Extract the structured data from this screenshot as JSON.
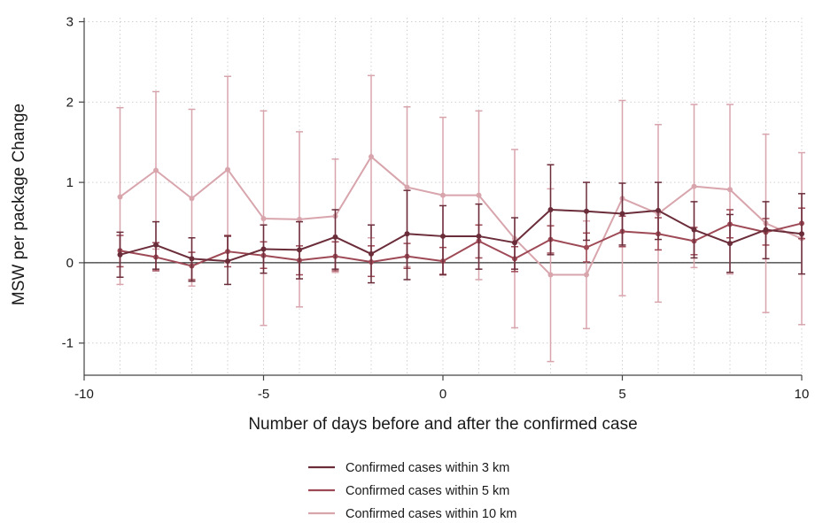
{
  "chart_data": {
    "type": "line",
    "xlabel": "Number of days before and after the confirmed case",
    "ylabel": "MSW per package Change",
    "xlim": [
      -10,
      10
    ],
    "ylim": [
      -1.4,
      3.05
    ],
    "xticks": [
      "-10",
      "-5",
      "0",
      "5",
      "10"
    ],
    "yticks": [
      "-1",
      "0",
      "1",
      "2",
      "3"
    ],
    "grid": true,
    "reference_line_y": 0,
    "legend_position": "bottom",
    "x": [
      -9,
      -8,
      -7,
      -6,
      -5,
      -4,
      -3,
      -2,
      -1,
      0,
      1,
      2,
      3,
      4,
      5,
      6,
      7,
      8,
      9,
      10
    ],
    "series": [
      {
        "name": "Confirmed cases within 3 km",
        "color": "#6b2d3a",
        "values": [
          0.1,
          0.22,
          0.05,
          0.02,
          0.17,
          0.16,
          0.32,
          0.11,
          0.36,
          0.33,
          0.33,
          0.25,
          0.66,
          0.64,
          0.61,
          0.65,
          0.41,
          0.24,
          0.41,
          0.36
        ],
        "lower": [
          -0.18,
          -0.08,
          -0.23,
          -0.27,
          -0.13,
          -0.2,
          -0.08,
          -0.25,
          -0.21,
          -0.15,
          -0.08,
          -0.08,
          0.1,
          0.28,
          0.22,
          0.29,
          0.06,
          -0.12,
          0.05,
          -0.14
        ],
        "upper": [
          0.38,
          0.51,
          0.31,
          0.33,
          0.47,
          0.51,
          0.66,
          0.47,
          0.9,
          0.71,
          0.73,
          0.56,
          1.22,
          1.0,
          0.99,
          1.0,
          0.76,
          0.6,
          0.76,
          0.86
        ]
      },
      {
        "name": "Confirmed cases within 5 km",
        "color": "#9e4a56",
        "values": [
          0.15,
          0.07,
          -0.04,
          0.14,
          0.09,
          0.03,
          0.08,
          0.01,
          0.08,
          0.02,
          0.27,
          0.05,
          0.29,
          0.19,
          0.39,
          0.36,
          0.27,
          0.48,
          0.38,
          0.49
        ],
        "lower": [
          -0.05,
          -0.1,
          -0.21,
          -0.05,
          -0.07,
          -0.15,
          -0.1,
          -0.17,
          -0.07,
          -0.15,
          0.06,
          -0.11,
          0.12,
          0.01,
          0.2,
          0.16,
          0.1,
          0.31,
          0.22,
          0.3
        ],
        "upper": [
          0.34,
          0.25,
          0.13,
          0.34,
          0.26,
          0.21,
          0.26,
          0.21,
          0.24,
          0.19,
          0.47,
          0.2,
          0.46,
          0.37,
          0.58,
          0.56,
          0.44,
          0.66,
          0.55,
          0.68
        ]
      },
      {
        "name": "Confirmed cases within 10 km",
        "color": "#d8a5ad",
        "values": [
          0.82,
          1.15,
          0.8,
          1.16,
          0.55,
          0.54,
          0.58,
          1.32,
          0.94,
          0.84,
          0.84,
          0.3,
          -0.15,
          -0.15,
          0.8,
          0.61,
          0.95,
          0.91,
          0.49,
          0.3
        ],
        "lower": [
          -0.27,
          0.17,
          -0.29,
          0.0,
          -0.78,
          -0.55,
          -0.12,
          0.31,
          -0.05,
          -0.14,
          -0.21,
          -0.81,
          -1.23,
          -0.82,
          -0.41,
          -0.49,
          -0.06,
          -0.14,
          -0.62,
          -0.77
        ],
        "upper": [
          1.93,
          2.13,
          1.91,
          2.32,
          1.89,
          1.63,
          1.29,
          2.33,
          1.94,
          1.81,
          1.89,
          1.41,
          0.92,
          0.52,
          2.02,
          1.72,
          1.97,
          1.97,
          1.6,
          1.37
        ]
      }
    ]
  }
}
